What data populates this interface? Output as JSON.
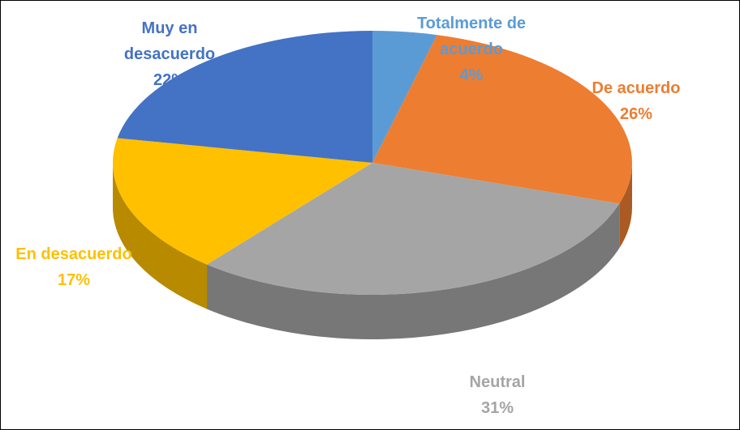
{
  "chart_data": {
    "type": "pie",
    "categories": [
      "Totalmente de acuerdo",
      "De acuerdo",
      "Neutral",
      "En desacuerdo",
      "Muy en desacuerdo"
    ],
    "values": [
      4,
      26,
      31,
      17,
      22
    ],
    "value_labels": [
      "4%",
      "26%",
      "31%",
      "17%",
      "22%"
    ],
    "colors": [
      "#5b9bd5",
      "#ed7d31",
      "#a5a5a5",
      "#ffc000",
      "#4472c4"
    ]
  }
}
